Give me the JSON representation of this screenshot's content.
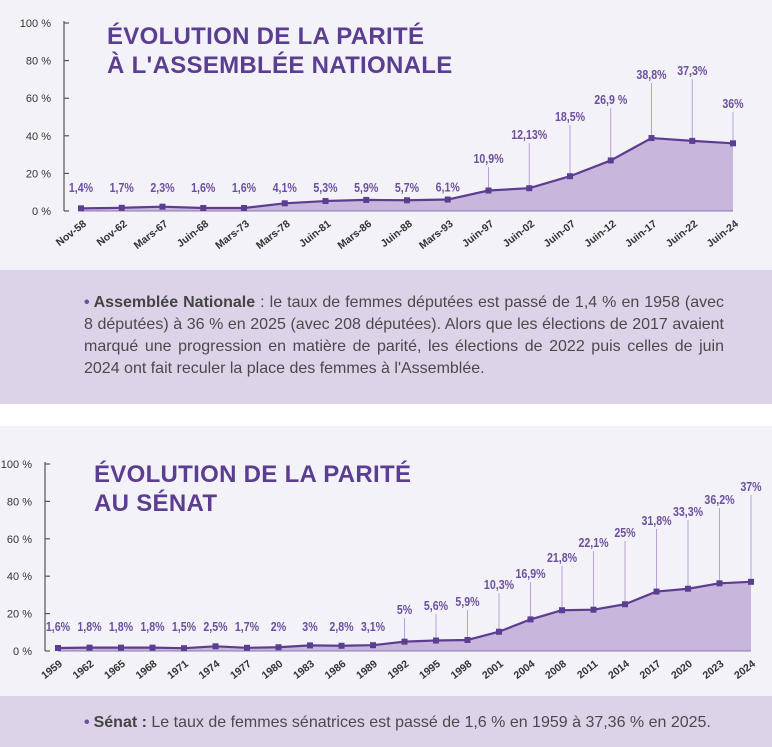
{
  "chart_data": [
    {
      "type": "area",
      "title_lines": [
        "ÉVOLUTION DE LA PARITÉ",
        "À L'ASSEMBLÉE NATIONALE"
      ],
      "categories": [
        "Nov-58",
        "Nov-62",
        "Mars-67",
        "Juin-68",
        "Mars-73",
        "Mars-78",
        "Juin-81",
        "Mars-86",
        "Juin-88",
        "Mars-93",
        "Juin-97",
        "Juin-02",
        "Juin-07",
        "Juin-12",
        "Juin-17",
        "Juin-22",
        "Juin-24"
      ],
      "values": [
        1.4,
        1.7,
        2.3,
        1.6,
        1.6,
        4.1,
        5.3,
        5.9,
        5.7,
        6.1,
        10.9,
        12.13,
        18.5,
        26.9,
        38.8,
        37.3,
        36
      ],
      "data_labels": [
        "1,4%",
        "1,7%",
        "2,3%",
        "1,6%",
        "1,6%",
        "4,1%",
        "5,3%",
        "5,9%",
        "5,7%",
        "6,1%",
        "10,9%",
        "12,13%",
        "18,5%",
        "26,9 %",
        "38,8%",
        "37,3%",
        "36%"
      ],
      "ytick_labels": [
        "100 %",
        "80 %",
        "60 %",
        "40 %",
        "20 %",
        "0 %"
      ],
      "ylim": [
        0,
        100
      ],
      "grid": false
    },
    {
      "type": "area",
      "title_lines": [
        "ÉVOLUTION DE LA PARITÉ",
        "AU SÉNAT"
      ],
      "categories": [
        "1959",
        "1962",
        "1965",
        "1968",
        "1971",
        "1974",
        "1977",
        "1980",
        "1983",
        "1986",
        "1989",
        "1992",
        "1995",
        "1998",
        "2001",
        "2004",
        "2008",
        "2011",
        "2014",
        "2017",
        "2020",
        "2023",
        "2024"
      ],
      "values": [
        1.6,
        1.8,
        1.8,
        1.8,
        1.5,
        2.5,
        1.7,
        2,
        3,
        2.8,
        3.1,
        5,
        5.6,
        5.9,
        10.3,
        16.9,
        21.8,
        22.1,
        25,
        31.8,
        33.3,
        36.2,
        37
      ],
      "data_labels": [
        "1,6%",
        "1,8%",
        "1,8%",
        "1,8%",
        "1,5%",
        "2,5%",
        "1,7%",
        "2%",
        "3%",
        "2,8%",
        "3,1%",
        "5%",
        "5,6%",
        "5,9%",
        "10,3%",
        "16,9%",
        "21,8%",
        "22,1%",
        "25%",
        "31,8%",
        "33,3%",
        "36,2%",
        "37%"
      ],
      "ytick_labels": [
        "100 %",
        "80 %",
        "60 %",
        "40 %",
        "20 %",
        "0 %"
      ],
      "ylim": [
        0,
        100
      ],
      "grid": false
    }
  ],
  "notes": {
    "assemblee_bullet": "•",
    "assemblee_bold": "Assemblée Nationale",
    "assemblee_text": " : le taux de femmes députées est passé de 1,4 % en 1958 (avec 8 députées) à 36 % en 2025 (avec 208 députées). Alors que les élections de 2017 avaient marqué une progression en matière de parité, les élections de 2022 puis celles de juin 2024 ont fait reculer la place des femmes à l'Assemblée.",
    "senat_bullet": "•",
    "senat_bold": "Sénat :",
    "senat_text": " Le taux de femmes sénatrices est passé de 1,6 % en 1959 à 37,36 % en 2025."
  },
  "colors": {
    "line": "#5b3d91",
    "fill": "#c8b6dd",
    "label": "#6b4fa0",
    "leader": "#b7a3d3",
    "axis": "#555555"
  }
}
